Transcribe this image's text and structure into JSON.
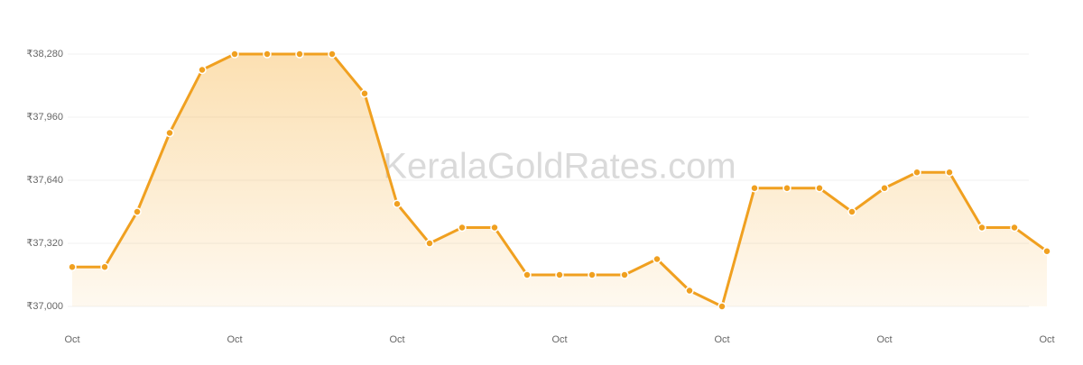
{
  "chart_data": {
    "type": "line",
    "watermark": "KeralaGoldRates.com",
    "categories": [
      "Oct",
      null,
      null,
      null,
      null,
      "Oct",
      null,
      null,
      null,
      null,
      "Oct",
      null,
      null,
      null,
      null,
      "Oct",
      null,
      null,
      null,
      null,
      "Oct",
      null,
      null,
      null,
      null,
      "Oct",
      null,
      null,
      null,
      null,
      "Oct"
    ],
    "values": [
      37200,
      37200,
      37480,
      37880,
      38200,
      38280,
      38280,
      38280,
      38280,
      38080,
      37520,
      37320,
      37400,
      37400,
      37160,
      37160,
      37160,
      37160,
      37240,
      37080,
      37000,
      37600,
      37600,
      37600,
      37480,
      37600,
      37680,
      37680,
      37400,
      37400,
      37280
    ],
    "color": "#f0a020",
    "ylim": [
      37000,
      38280
    ],
    "yticks": [
      {
        "value": 37000,
        "label": "₹37,000"
      },
      {
        "value": 37320,
        "label": "₹37,320"
      },
      {
        "value": 37640,
        "label": "₹37,640"
      },
      {
        "value": 37960,
        "label": "₹37,960"
      },
      {
        "value": 38280,
        "label": "₹38,280"
      }
    ],
    "grid": true
  }
}
